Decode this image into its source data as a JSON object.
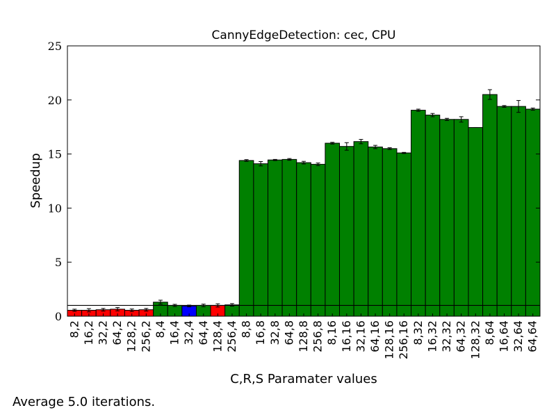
{
  "chart_data": {
    "type": "bar",
    "title": "CannyEdgeDetection: cec, CPU",
    "xlabel": "C,R,S Paramater values",
    "ylabel": "Speedup",
    "ylim": [
      0,
      25
    ],
    "yticks": [
      0,
      5,
      10,
      15,
      20,
      25
    ],
    "reference_line": 1.0,
    "grid": false,
    "categories": [
      "8,2",
      "16,2",
      "32,2",
      "64,2",
      "128,2",
      "256,2",
      "8,4",
      "16,4",
      "32,4",
      "64,4",
      "128,4",
      "256,4",
      "8,8",
      "16,8",
      "32,8",
      "64,8",
      "128,8",
      "256,8",
      "8,16",
      "16,16",
      "32,16",
      "64,16",
      "128,16",
      "256,16",
      "8,32",
      "16,32",
      "32,32",
      "64,32",
      "128,32",
      "8,64",
      "16,64",
      "32,64",
      "64,64"
    ],
    "values": [
      0.55,
      0.55,
      0.6,
      0.65,
      0.55,
      0.6,
      1.3,
      1.0,
      0.95,
      1.0,
      1.0,
      1.05,
      14.4,
      14.1,
      14.45,
      14.5,
      14.2,
      14.05,
      16.0,
      15.7,
      16.15,
      15.65,
      15.5,
      15.1,
      19.05,
      18.6,
      18.2,
      18.2,
      17.45,
      20.5,
      19.4,
      19.4,
      19.15
    ],
    "errors": [
      0.1,
      0.15,
      0.12,
      0.15,
      0.12,
      0.12,
      0.18,
      0.1,
      0.08,
      0.12,
      0.15,
      0.12,
      0.08,
      0.2,
      0.05,
      0.08,
      0.12,
      0.12,
      0.08,
      0.35,
      0.2,
      0.15,
      0.08,
      0.05,
      0.1,
      0.15,
      0.1,
      0.25,
      0.0,
      0.45,
      0.08,
      0.55,
      0.1
    ],
    "colors": [
      "#ff0000",
      "#ff0000",
      "#ff0000",
      "#ff0000",
      "#ff0000",
      "#ff0000",
      "#008000",
      "#008000",
      "#0000ff",
      "#008000",
      "#ff0000",
      "#008000",
      "#008000",
      "#008000",
      "#008000",
      "#008000",
      "#008000",
      "#008000",
      "#008000",
      "#008000",
      "#008000",
      "#008000",
      "#008000",
      "#008000",
      "#008000",
      "#008000",
      "#008000",
      "#008000",
      "#008000",
      "#008000",
      "#008000",
      "#008000",
      "#008000"
    ]
  },
  "footnote": "Average 5.0 iterations."
}
